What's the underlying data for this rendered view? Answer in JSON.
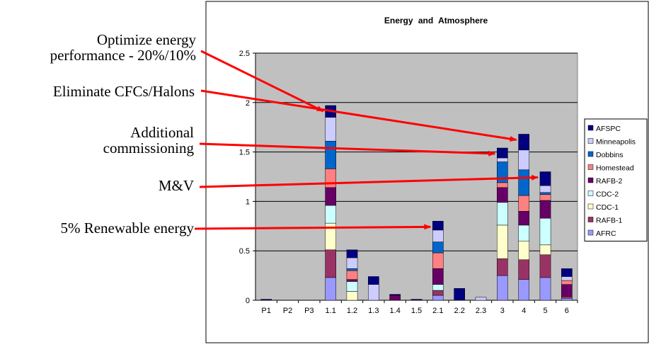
{
  "chart_data": {
    "type": "bar",
    "stacked": true,
    "title": "Energy and Atmosphere",
    "categories": [
      "P1",
      "P2",
      "P3",
      "1.1",
      "1.2",
      "1.3",
      "1.4",
      "1.5",
      "2.1",
      "2.2",
      "2.3",
      "3",
      "4",
      "5",
      "6"
    ],
    "ylim": [
      0,
      2.5
    ],
    "yticks": [
      "0",
      "0.5",
      "1",
      "1.5",
      "2",
      "2.5"
    ],
    "grid": true,
    "legend_position": "right",
    "series": [
      {
        "name": "AFRC",
        "color": "#9999ff",
        "values": [
          0,
          0,
          0,
          0.23,
          0,
          0,
          0,
          0,
          0.05,
          0,
          0,
          0.25,
          0.21,
          0.23,
          0.02
        ]
      },
      {
        "name": "RAFB-1",
        "color": "#993366",
        "values": [
          0,
          0,
          0,
          0.28,
          0,
          0,
          0,
          0,
          0.05,
          0,
          0,
          0.17,
          0.2,
          0.23,
          0.02
        ]
      },
      {
        "name": "CDC-1",
        "color": "#ffffcc",
        "values": [
          0,
          0,
          0,
          0.27,
          0.09,
          0,
          0,
          0,
          0,
          0,
          0,
          0.34,
          0.19,
          0.1,
          0
        ]
      },
      {
        "name": "CDC-2",
        "color": "#ccffff",
        "values": [
          0,
          0,
          0,
          0.18,
          0.1,
          0,
          0,
          0,
          0.06,
          0,
          0,
          0.23,
          0.16,
          0.27,
          0
        ]
      },
      {
        "name": "RAFB-2",
        "color": "#660066",
        "values": [
          0,
          0,
          0,
          0.18,
          0.02,
          0,
          0.05,
          0,
          0.16,
          0,
          0,
          0.15,
          0.14,
          0.18,
          0.12
        ]
      },
      {
        "name": "Homestead",
        "color": "#ff8080",
        "values": [
          0,
          0,
          0,
          0.19,
          0.09,
          0,
          0,
          0,
          0.16,
          0,
          0,
          0.05,
          0.16,
          0.06,
          0.04
        ]
      },
      {
        "name": "Dobbins",
        "color": "#0066cc",
        "values": [
          0,
          0,
          0,
          0.28,
          0.02,
          0,
          0,
          0,
          0.11,
          0,
          0,
          0.21,
          0.26,
          0.02,
          0
        ]
      },
      {
        "name": "Minneapolis",
        "color": "#ccccff",
        "values": [
          0,
          0,
          0,
          0.24,
          0.11,
          0.16,
          0,
          0,
          0.12,
          0,
          0.03,
          0.04,
          0.2,
          0.07,
          0.04
        ]
      },
      {
        "name": "AFSPC",
        "color": "#000080",
        "values": [
          0.01,
          0,
          0,
          0.12,
          0.08,
          0.08,
          0.01,
          0.01,
          0.09,
          0.12,
          0,
          0.1,
          0.16,
          0.14,
          0.08
        ]
      }
    ]
  },
  "callouts": [
    {
      "text": "Optimize energy\nperformance - 20%/10%",
      "target": "1.1"
    },
    {
      "text": "Eliminate CFCs/Halons",
      "target": "4"
    },
    {
      "text": "Additional\ncommissioning",
      "target": "3"
    },
    {
      "text": "M&V",
      "target": "5"
    },
    {
      "text": "5% Renewable energy",
      "target": "2.1"
    }
  ],
  "colors": {
    "plot_bg": "#c0c0c0",
    "arrow": "#ff0000"
  }
}
